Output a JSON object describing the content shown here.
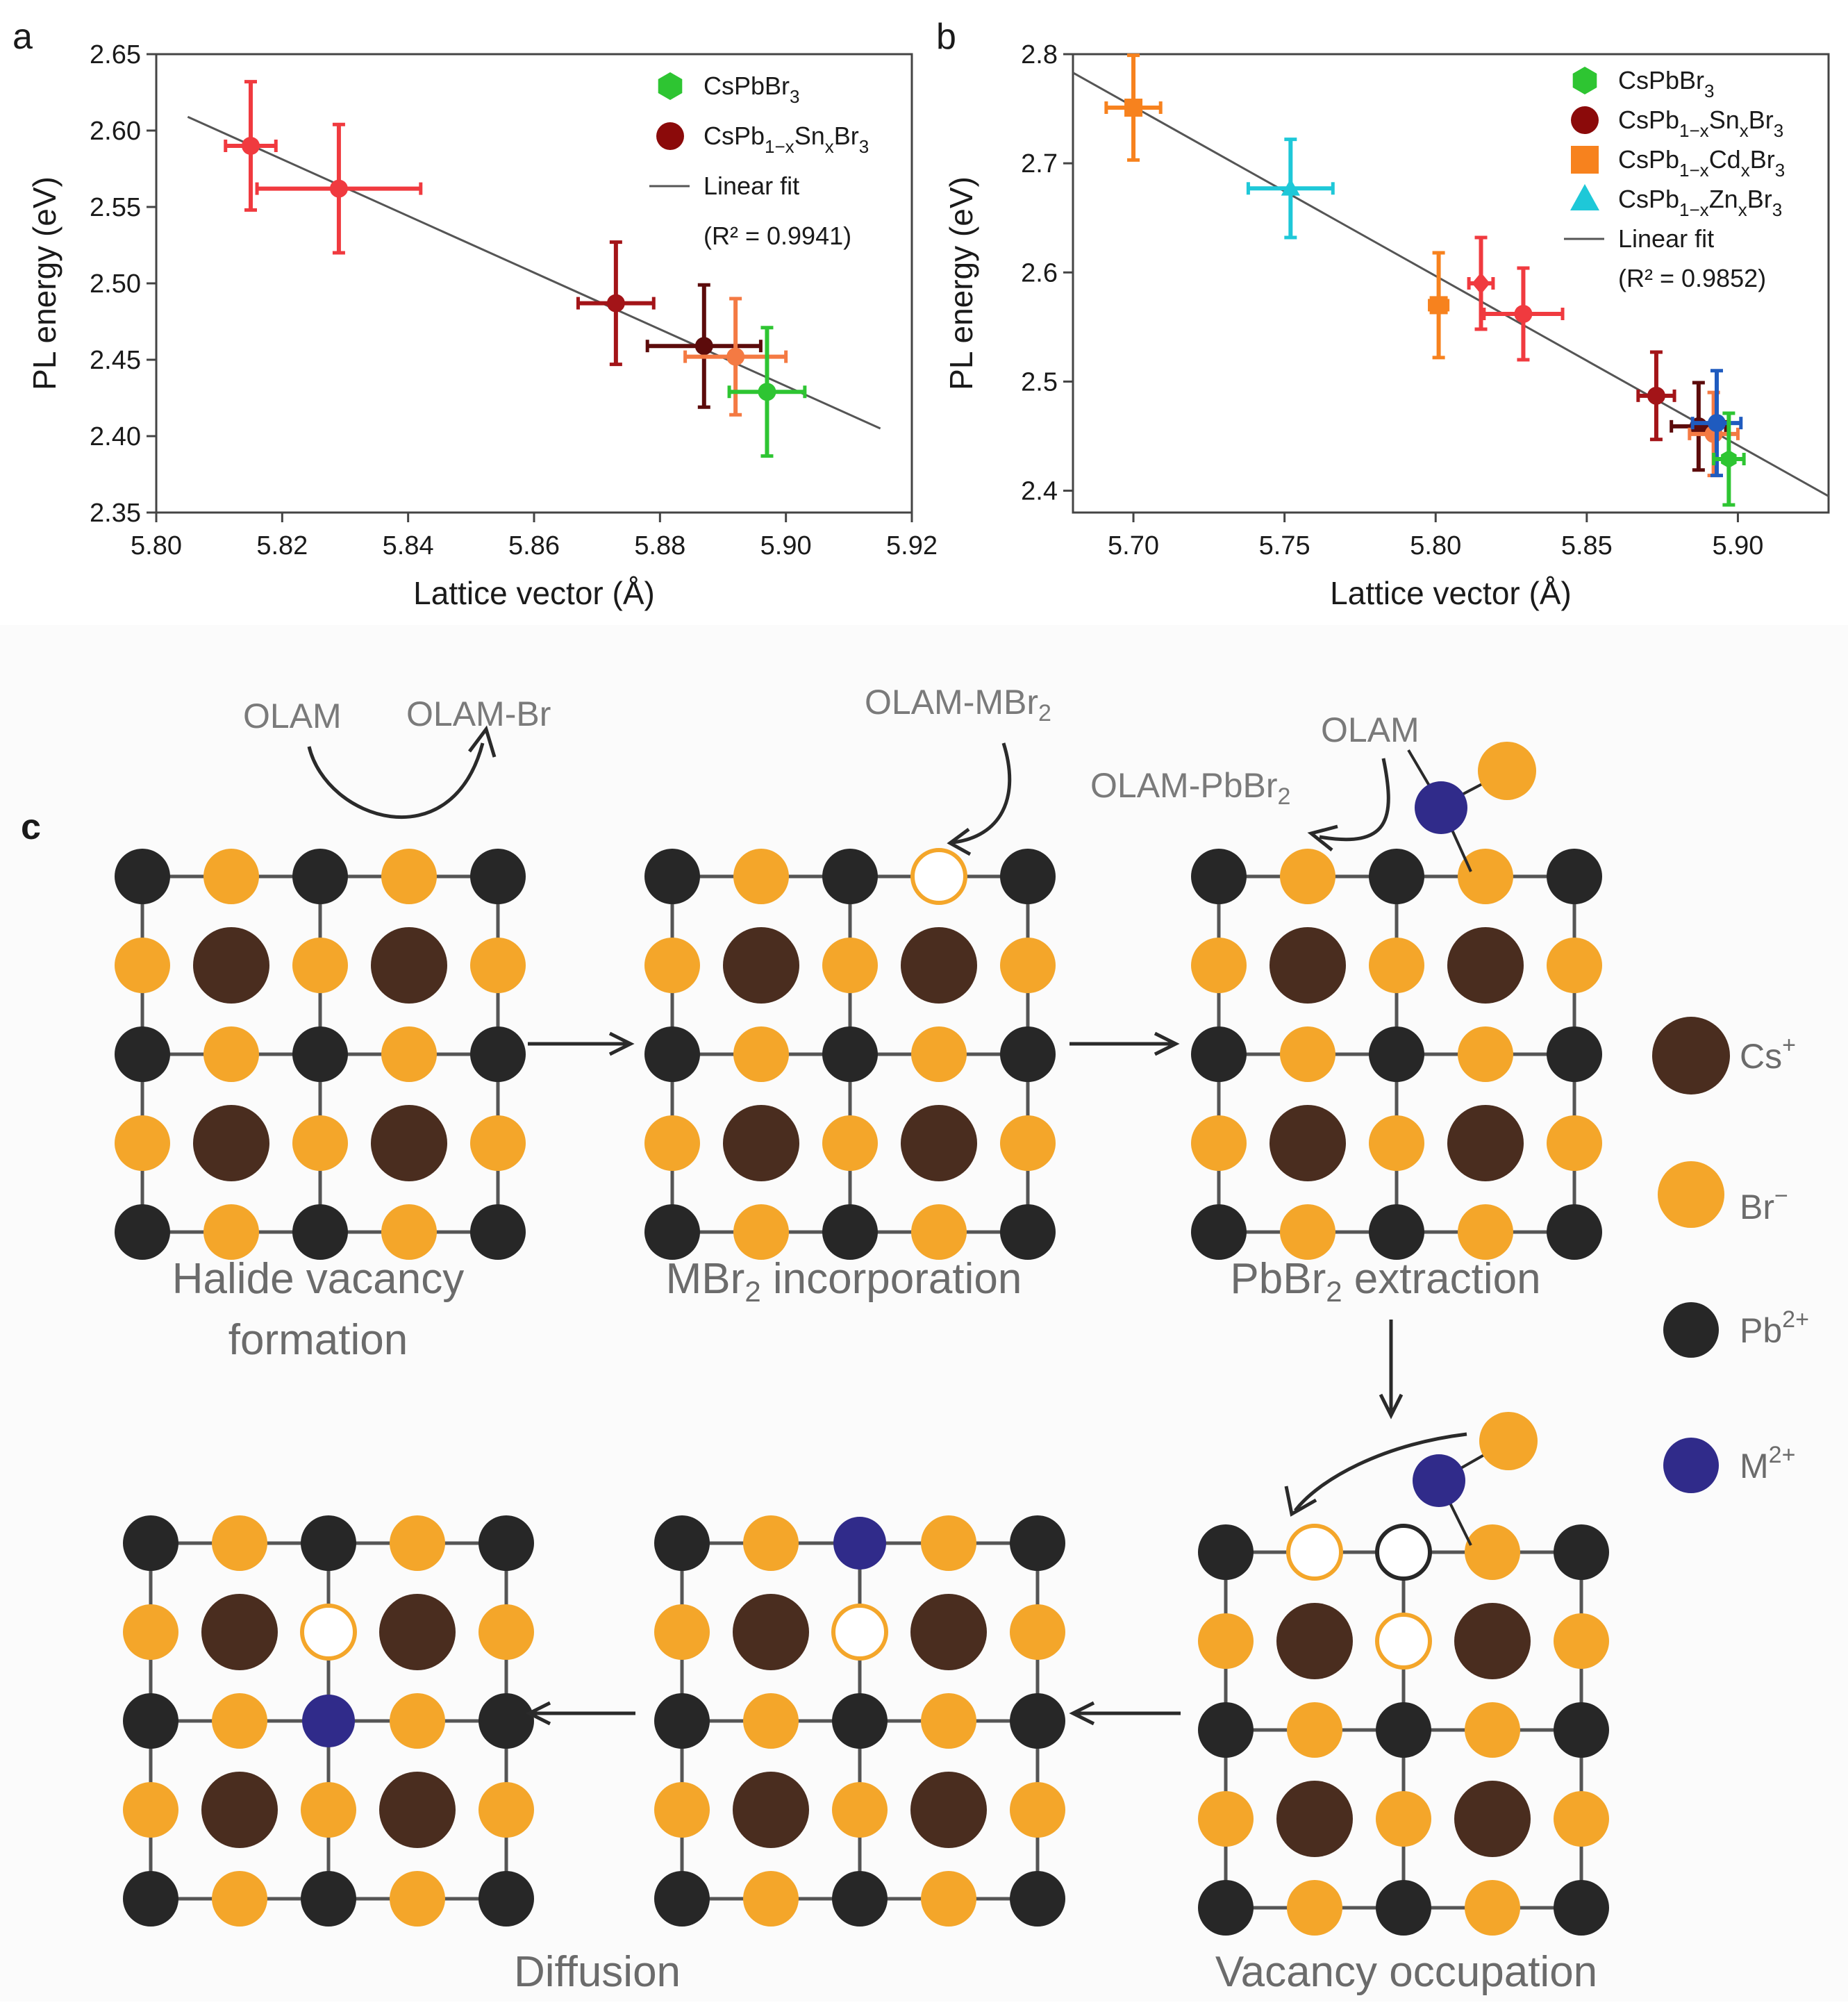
{
  "chart_data": [
    {
      "panel": "a",
      "type": "scatter",
      "xlabel": "Lattice vector (Å)",
      "ylabel": "PL energy (eV)",
      "xlim": [
        5.8,
        5.92
      ],
      "ylim": [
        2.35,
        2.65
      ],
      "xticks": [
        "5.80",
        "5.82",
        "5.84",
        "5.86",
        "5.88",
        "5.90",
        "5.92"
      ],
      "yticks": [
        "2.35",
        "2.40",
        "2.45",
        "2.50",
        "2.55",
        "2.60",
        "2.65"
      ],
      "grid": false,
      "legend": {
        "position": "top-right",
        "items": [
          {
            "label": "CsPbBr",
            "sub": "3",
            "marker": "hexagon",
            "color": "#2ec532"
          },
          {
            "label": "CsPb",
            "sub": "1−x",
            "mid": "Sn",
            "sub2": "x",
            "tail": "Br",
            "sub3": "3",
            "marker": "circle",
            "color": "#8b0a0a"
          },
          {
            "label": "Linear fit",
            "marker": "line",
            "color": "#555555"
          },
          {
            "label": "(R² = 0.9941)",
            "marker": "none"
          }
        ]
      },
      "fit": {
        "x": [
          5.805,
          5.915
        ],
        "y": [
          2.609,
          2.405
        ]
      },
      "series": [
        {
          "name": "CsPb1−xSnxBr3",
          "points": [
            {
              "x": 5.815,
              "y": 2.59,
              "xerr": 0.004,
              "yerr": 0.042,
              "color": "#f03a3f"
            },
            {
              "x": 5.829,
              "y": 2.562,
              "xerr": 0.013,
              "yerr": 0.042,
              "color": "#f03a3f"
            },
            {
              "x": 5.873,
              "y": 2.487,
              "xerr": 0.006,
              "yerr": 0.04,
              "color": "#a31418"
            },
            {
              "x": 5.887,
              "y": 2.459,
              "xerr": 0.009,
              "yerr": 0.04,
              "color": "#5c0b0b"
            },
            {
              "x": 5.892,
              "y": 2.452,
              "xerr": 0.008,
              "yerr": 0.038,
              "color": "#f47a43"
            }
          ]
        },
        {
          "name": "CsPbBr3",
          "points": [
            {
              "x": 5.897,
              "y": 2.429,
              "xerr": 0.006,
              "yerr": 0.042,
              "color": "#2ec532"
            }
          ]
        }
      ]
    },
    {
      "panel": "b",
      "type": "scatter",
      "xlabel": "Lattice vector (Å)",
      "ylabel": "PL energy (eV)",
      "xlim": [
        5.68,
        5.93
      ],
      "ylim": [
        2.38,
        2.8
      ],
      "xticks": [
        "5.70",
        "5.75",
        "5.80",
        "5.85",
        "5.90"
      ],
      "yticks": [
        "2.4",
        "2.5",
        "2.6",
        "2.7",
        "2.8"
      ],
      "grid": false,
      "legend": {
        "position": "top-right",
        "items": [
          {
            "label": "CsPbBr",
            "sub": "3",
            "marker": "hexagon",
            "color": "#2ec532"
          },
          {
            "label": "CsPb",
            "sub": "1−x",
            "mid": "Sn",
            "sub2": "x",
            "tail": "Br",
            "sub3": "3",
            "marker": "circle",
            "color": "#8b0a0a"
          },
          {
            "label": "CsPb",
            "sub": "1−x",
            "mid": "Cd",
            "sub2": "x",
            "tail": "Br",
            "sub3": "3",
            "marker": "square",
            "color": "#f7821e"
          },
          {
            "label": "CsPb",
            "sub": "1−x",
            "mid": "Zn",
            "sub2": "x",
            "tail": "Br",
            "sub3": "3",
            "marker": "triangle",
            "color": "#1ec8d8"
          },
          {
            "label": "Linear fit",
            "marker": "line",
            "color": "#555555"
          },
          {
            "label": "(R² = 0.9852)",
            "marker": "none"
          }
        ]
      },
      "fit": {
        "x": [
          5.68,
          5.93
        ],
        "y": [
          2.783,
          2.395
        ]
      },
      "series": [
        {
          "name": "CsPb1−xCdxBr3",
          "points": [
            {
              "x": 5.7,
              "y": 2.751,
              "xerr": 0.009,
              "yerr": 0.048,
              "color": "#f7821e",
              "marker": "square"
            },
            {
              "x": 5.801,
              "y": 2.57,
              "xerr": 0.003,
              "yerr": 0.048,
              "color": "#f7821e",
              "marker": "square"
            }
          ]
        },
        {
          "name": "CsPb1−xZnxBr3",
          "points": [
            {
              "x": 5.752,
              "y": 2.677,
              "xerr": 0.014,
              "yerr": 0.045,
              "color": "#1ec8d8",
              "marker": "triangle"
            }
          ]
        },
        {
          "name": "CsPb1−xSnxBr3",
          "points": [
            {
              "x": 5.815,
              "y": 2.59,
              "xerr": 0.004,
              "yerr": 0.042,
              "color": "#f03a3f",
              "marker": "diamond"
            },
            {
              "x": 5.829,
              "y": 2.562,
              "xerr": 0.013,
              "yerr": 0.042,
              "color": "#f03a3f",
              "marker": "circle"
            },
            {
              "x": 5.873,
              "y": 2.487,
              "xerr": 0.006,
              "yerr": 0.04,
              "color": "#a31418",
              "marker": "circle"
            },
            {
              "x": 5.887,
              "y": 2.459,
              "xerr": 0.009,
              "yerr": 0.04,
              "color": "#5c0b0b",
              "marker": "circle"
            },
            {
              "x": 5.892,
              "y": 2.452,
              "xerr": 0.008,
              "yerr": 0.038,
              "color": "#f47a43",
              "marker": "circle"
            },
            {
              "x": 5.893,
              "y": 2.462,
              "xerr": 0.008,
              "yerr": 0.048,
              "color": "#1f5bbf",
              "marker": "circle"
            }
          ]
        },
        {
          "name": "CsPbBr3",
          "points": [
            {
              "x": 5.897,
              "y": 2.429,
              "xerr": 0.005,
              "yerr": 0.042,
              "color": "#2ec532",
              "marker": "hexagon"
            }
          ]
        }
      ]
    }
  ],
  "diagram_c": {
    "panel_label": "c",
    "colors": {
      "cs": "#4a2d1f",
      "br": "#f4a62a",
      "pb": "#272727",
      "m": "#302b8a",
      "bond": "#555555"
    },
    "reactions": {
      "olam": "OLAM",
      "olam_br": "OLAM-Br",
      "olam_mbr2": "OLAM-MBr",
      "olam_mbr2_sub": "2",
      "olam_pbbr2": "OLAM-PbBr",
      "olam_pbbr2_sub": "2",
      "olam2": "OLAM"
    },
    "captions": {
      "halide_vacancy_1": "Halide vacancy",
      "halide_vacancy_2": "formation",
      "mbr2_a": "MBr",
      "mbr2_sub": "2",
      "mbr2_b": " incorporation",
      "pbbr2_a": "PbBr",
      "pbbr2_sub": "2",
      "pbbr2_b": " extraction",
      "diffusion": "Diffusion",
      "vacancy_occupation": "Vacancy occupation"
    },
    "legend": [
      {
        "key": "cs",
        "label": "Cs",
        "sup": "+"
      },
      {
        "key": "br",
        "label": "Br",
        "sup": "−"
      },
      {
        "key": "pb",
        "label": "Pb",
        "sup": "2+"
      },
      {
        "key": "m",
        "label": "M",
        "sup": "2+"
      }
    ]
  }
}
